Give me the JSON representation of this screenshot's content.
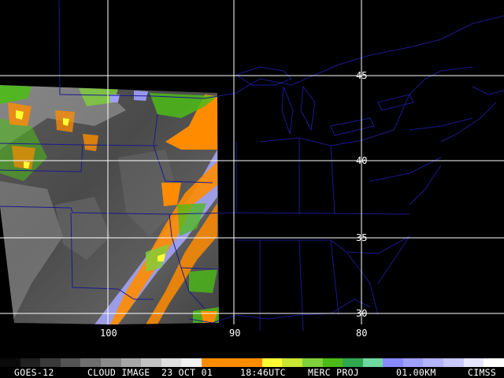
{
  "product": {
    "satellite": "GOES-12",
    "product_name": "CLOUD IMAGE",
    "date": "23 OCT 01",
    "time": "18:46UTC",
    "projection": "MERC PROJ",
    "resolution": "01.00KM",
    "provider": "CIMSS"
  },
  "latitude_labels": [
    "45",
    "40",
    "35",
    "30"
  ],
  "longitude_labels": [
    "100",
    "90",
    "80"
  ],
  "colorbar": {
    "colors": [
      "#0a0a0a",
      "#202020",
      "#3a3a3a",
      "#545454",
      "#6e6e6e",
      "#8a8a8a",
      "#a6a6a6",
      "#c2c2c2",
      "#dedede",
      "#f0f0f0",
      "#ff8c00",
      "#ff8c00",
      "#ff8c00",
      "#ffff33",
      "#c8e632",
      "#7fd13b",
      "#4cbb17",
      "#2fa84f",
      "#6fd7a0",
      "#8a8aff",
      "#a0a0ff",
      "#b4b4ff",
      "#c8c8ff",
      "#e6e6ff",
      "#ffffff"
    ]
  },
  "image_colors": {
    "background": "#000000",
    "grid": "#ffffff",
    "boundaries": "#1a1a8c",
    "orange": "#ff8c00",
    "green": "#4cbb17",
    "lavender": "#a0a0ff"
  }
}
